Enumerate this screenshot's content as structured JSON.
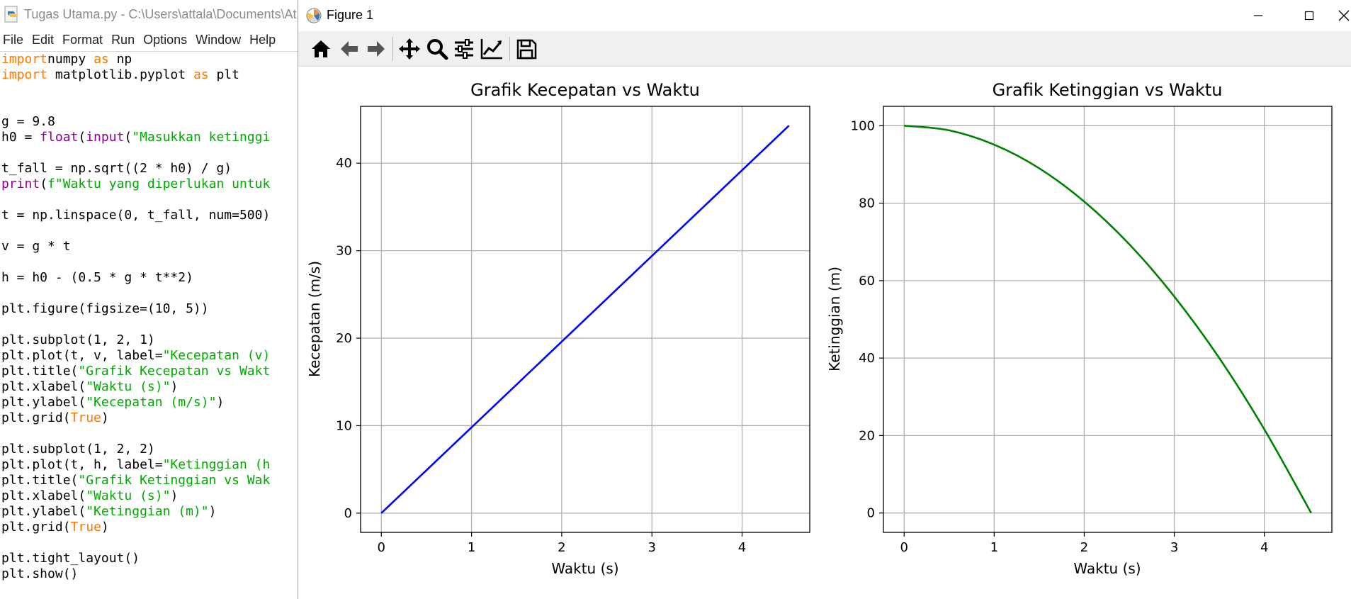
{
  "editor": {
    "title": "Tugas Utama.py - C:\\Users\\attala\\Documents\\At",
    "menu": [
      "File",
      "Edit",
      "Format",
      "Run",
      "Options",
      "Window",
      "Help"
    ],
    "code_lines": [
      [
        [
          "kw",
          "import"
        ],
        [
          "",
          "numpy "
        ],
        [
          "kw",
          "as"
        ],
        [
          "",
          " np"
        ]
      ],
      [
        [
          "kw",
          "import"
        ],
        [
          "",
          " matplotlib.pyplot "
        ],
        [
          "kw",
          "as"
        ],
        [
          "",
          " plt"
        ]
      ],
      [],
      [],
      [
        [
          "",
          "g = 9.8"
        ]
      ],
      [
        [
          "",
          "h0 = "
        ],
        [
          "bi",
          "float"
        ],
        [
          "",
          "("
        ],
        [
          "bi",
          "input"
        ],
        [
          "",
          "("
        ],
        [
          "st",
          "\"Masukkan ketinggi"
        ]
      ],
      [],
      [
        [
          "",
          "t_fall = np.sqrt((2 * h0) / g)"
        ]
      ],
      [
        [
          "bi",
          "print"
        ],
        [
          "",
          "("
        ],
        [
          "st",
          "f\"Waktu yang diperlukan untuk"
        ]
      ],
      [],
      [
        [
          "",
          "t = np.linspace(0, t_fall, num=500)"
        ]
      ],
      [],
      [
        [
          "",
          "v = g * t"
        ]
      ],
      [],
      [
        [
          "",
          "h = h0 - (0.5 * g * t**2)"
        ]
      ],
      [],
      [
        [
          "",
          "plt.figure(figsize=(10, 5))"
        ]
      ],
      [],
      [
        [
          "",
          "plt.subplot(1, 2, 1)"
        ]
      ],
      [
        [
          "",
          "plt.plot(t, v, label="
        ],
        [
          "st",
          "\"Kecepatan (v)"
        ]
      ],
      [
        [
          "",
          "plt.title("
        ],
        [
          "st",
          "\"Grafik Kecepatan vs Wakt"
        ]
      ],
      [
        [
          "",
          "plt.xlabel("
        ],
        [
          "st",
          "\"Waktu (s)\""
        ],
        [
          "",
          ")"
        ]
      ],
      [
        [
          "",
          "plt.ylabel("
        ],
        [
          "st",
          "\"Kecepatan (m/s)\""
        ],
        [
          "",
          ")"
        ]
      ],
      [
        [
          "",
          "plt.grid("
        ],
        [
          "kw",
          "True"
        ],
        [
          "",
          ")"
        ]
      ],
      [],
      [
        [
          "",
          "plt.subplot(1, 2, 2)"
        ]
      ],
      [
        [
          "",
          "plt.plot(t, h, label="
        ],
        [
          "st",
          "\"Ketinggian (h"
        ]
      ],
      [
        [
          "",
          "plt.title("
        ],
        [
          "st",
          "\"Grafik Ketinggian vs Wak"
        ]
      ],
      [
        [
          "",
          "plt.xlabel("
        ],
        [
          "st",
          "\"Waktu (s)\""
        ],
        [
          "",
          ")"
        ]
      ],
      [
        [
          "",
          "plt.ylabel("
        ],
        [
          "st",
          "\"Ketinggian (m)\""
        ],
        [
          "",
          ")"
        ]
      ],
      [
        [
          "",
          "plt.grid("
        ],
        [
          "kw",
          "True"
        ],
        [
          "",
          ")"
        ]
      ],
      [],
      [
        [
          "",
          "plt.tight_layout()"
        ]
      ],
      [
        [
          "",
          "plt.show()"
        ]
      ]
    ]
  },
  "figure_window": {
    "title": "Figure 1",
    "toolbar": [
      "home-icon",
      "back-arrow-icon",
      "forward-arrow-icon",
      "pan-icon",
      "zoom-icon",
      "subplots-config-icon",
      "edit-axis-icon",
      "save-icon"
    ]
  },
  "chart_data": [
    {
      "type": "line",
      "title": "Grafik Kecepatan vs Waktu",
      "xlabel": "Waktu (s)",
      "ylabel": "Kecepatan (m/s)",
      "xlim": [
        -0.23,
        4.75
      ],
      "ylim": [
        -2.2,
        46.5
      ],
      "xticks": [
        0,
        1,
        2,
        3,
        4
      ],
      "yticks": [
        0,
        10,
        20,
        30,
        40
      ],
      "grid": true,
      "series": [
        {
          "color": "#0000ff",
          "x": [
            0,
            1,
            2,
            3,
            4,
            4.52
          ],
          "y": [
            0,
            9.8,
            19.6,
            29.4,
            39.2,
            44.3
          ]
        }
      ]
    },
    {
      "type": "line",
      "title": "Grafik Ketinggian vs Waktu",
      "xlabel": "Waktu (s)",
      "ylabel": "Ketinggian (m)",
      "xlim": [
        -0.23,
        4.75
      ],
      "ylim": [
        -5,
        105
      ],
      "xticks": [
        0,
        1,
        2,
        3,
        4
      ],
      "yticks": [
        0,
        20,
        40,
        60,
        80,
        100
      ],
      "grid": true,
      "series": [
        {
          "color": "#008000",
          "x": [
            0,
            0.5,
            1,
            1.5,
            2,
            2.5,
            3,
            3.5,
            4,
            4.52
          ],
          "y": [
            100,
            98.8,
            95.1,
            89,
            80.4,
            69.4,
            55.9,
            40,
            21.6,
            0
          ]
        }
      ]
    }
  ]
}
